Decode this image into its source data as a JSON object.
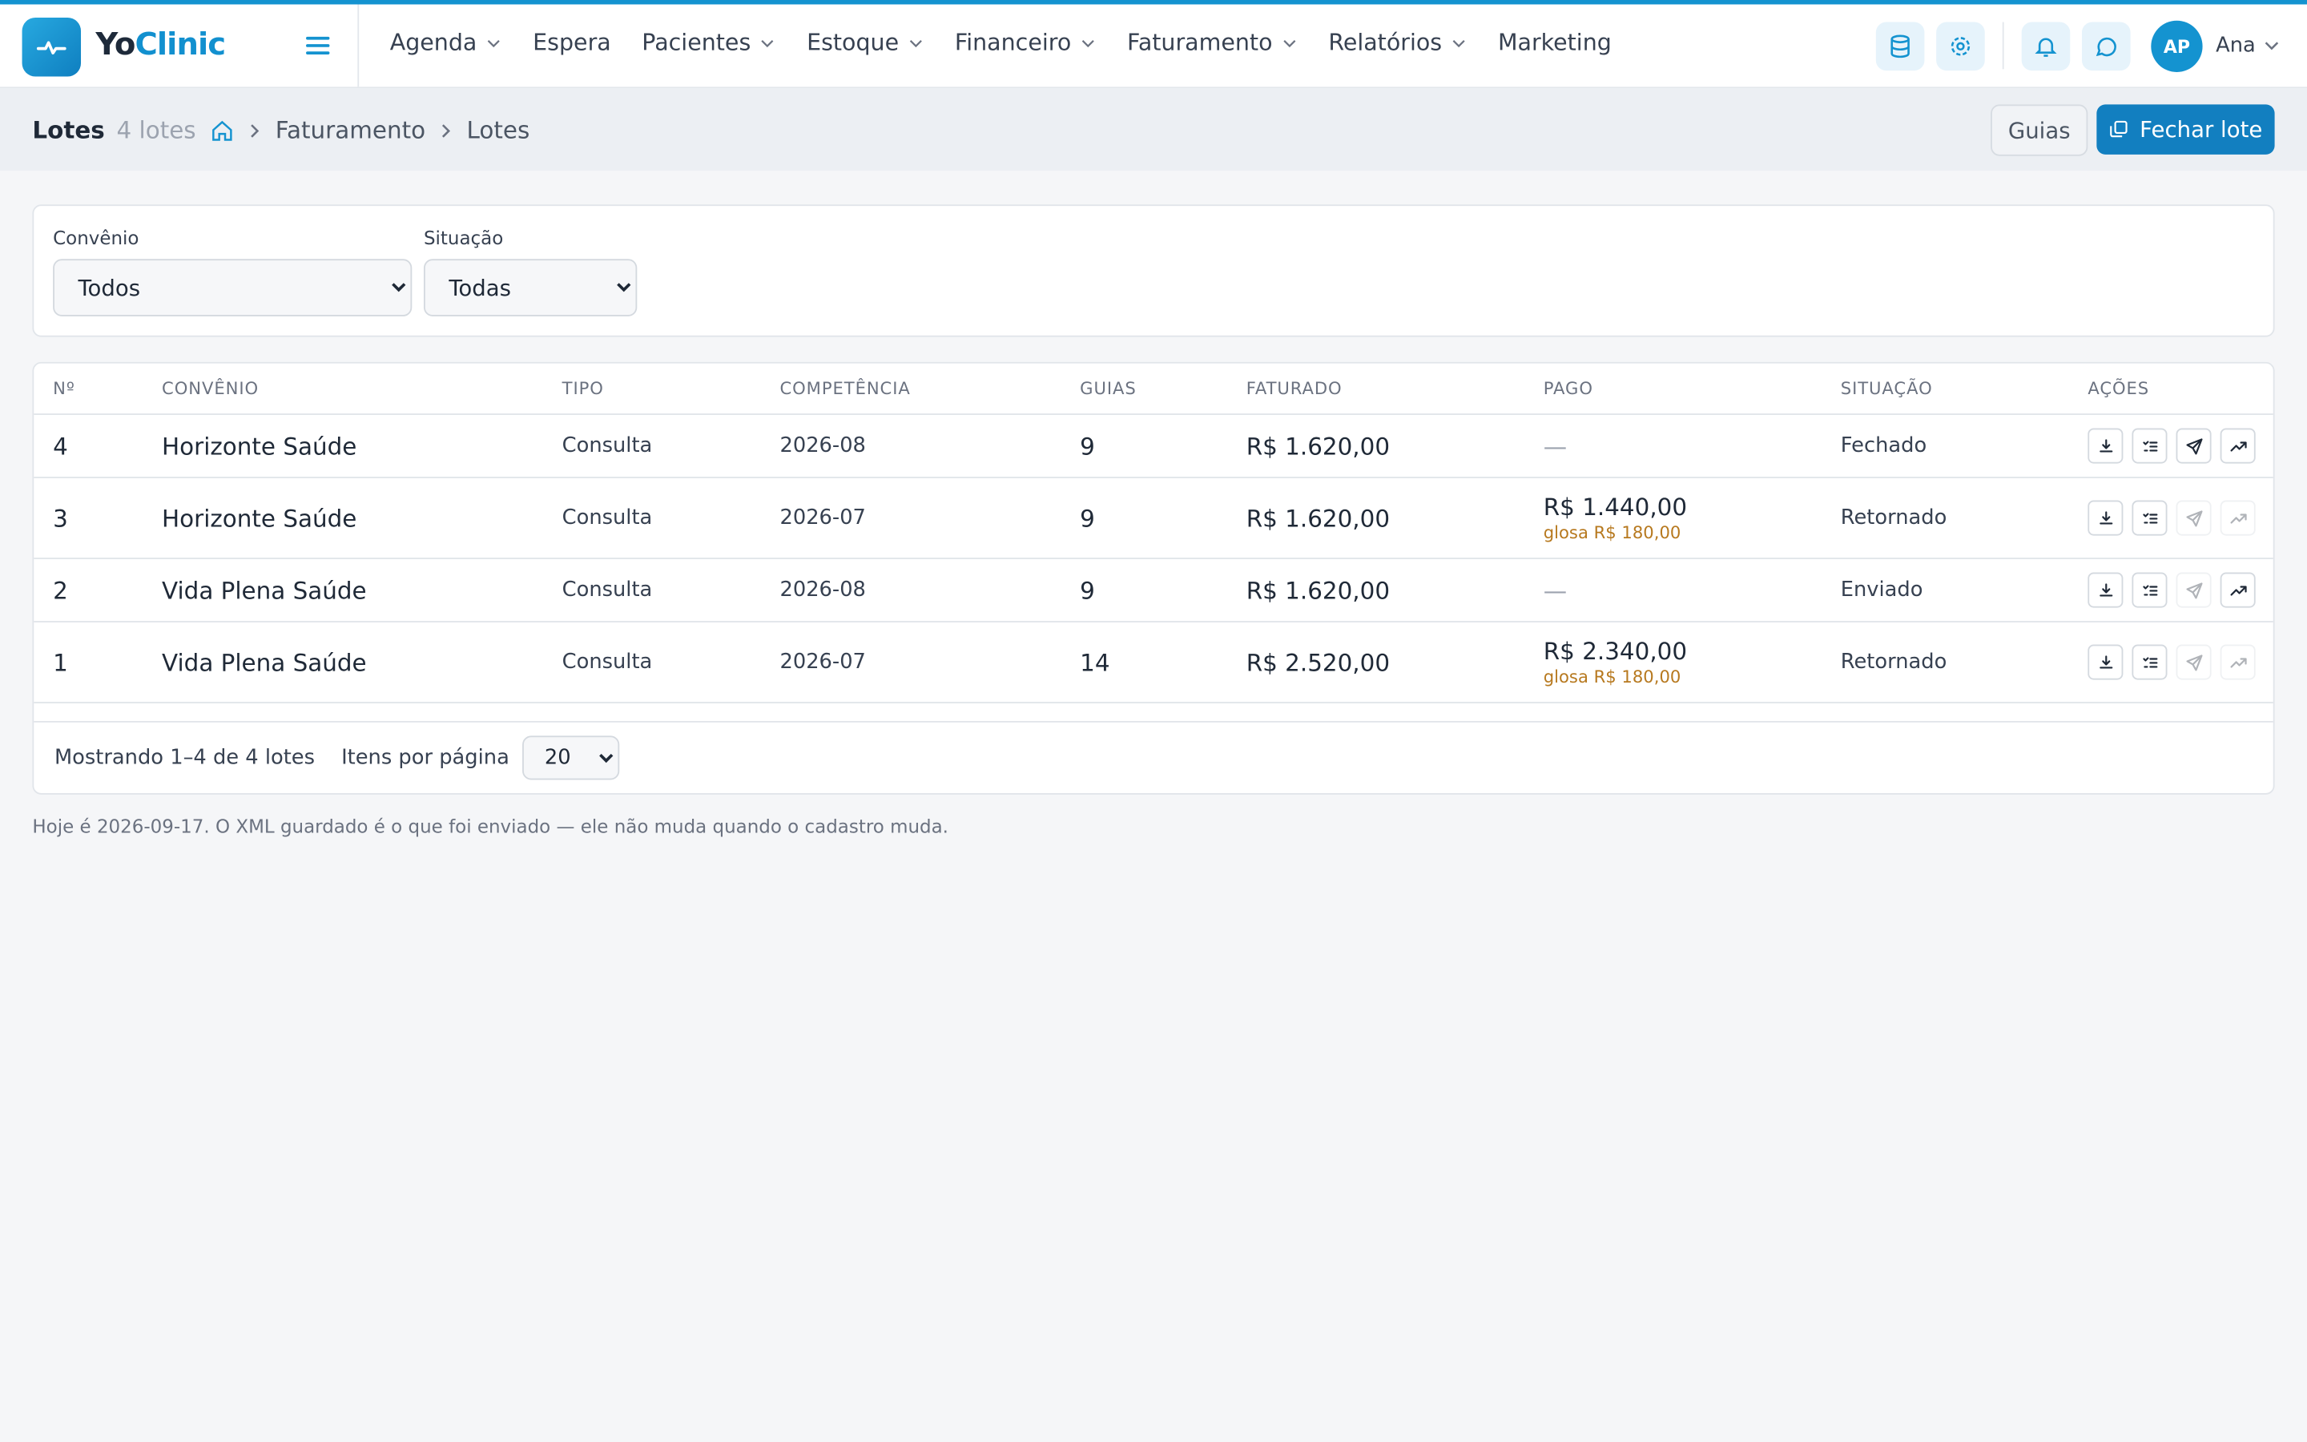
{
  "header": {
    "logo": [
      "Yo",
      "Clinic"
    ],
    "nav": [
      "Agenda",
      "Espera",
      "Pacientes",
      "Estoque",
      "Financeiro",
      "Faturamento",
      "Relatórios",
      "Marketing"
    ],
    "avatar": "AP",
    "user": "Ana"
  },
  "page": {
    "title": "Lotes",
    "count": "4 lotes",
    "breadcrumb": [
      "Faturamento",
      "Lotes"
    ],
    "buttons": {
      "guias": "Guias",
      "fechar": "Fechar lote"
    }
  },
  "filters": [
    {
      "label": "Convênio",
      "value": "Todos"
    },
    {
      "label": "Situação",
      "value": "Todas"
    }
  ],
  "table": {
    "columns": [
      "Nº",
      "CONVÊNIO",
      "TIPO",
      "COMPETÊNCIA",
      "GUIAS",
      "FATURADO",
      "PAGO",
      "SITUAÇÃO",
      "AÇÕES"
    ],
    "rows": [
      {
        "num": 4,
        "convenio": "Horizonte Saúde",
        "tipo": "Consulta",
        "competencia": "2026-08",
        "guias": 9,
        "faturado": "R$ 1.620,00",
        "pago": "—",
        "situacao": "Fechado"
      },
      {
        "num": 3,
        "convenio": "Horizonte Saúde",
        "tipo": "Consulta",
        "competencia": "2026-07",
        "guias": 9,
        "faturado": "R$ 1.620,00",
        "pago": "R$ 1.440,00",
        "glosa": "glosa R$ 180,00",
        "situacao": "Retornado"
      },
      {
        "num": 2,
        "convenio": "Vida Plena Saúde",
        "tipo": "Consulta",
        "competencia": "2026-08",
        "guias": 9,
        "faturado": "R$ 1.620,00",
        "pago": "—",
        "situacao": "Enviado"
      },
      {
        "num": 1,
        "convenio": "Vida Plena Saúde",
        "tipo": "Consulta",
        "competencia": "2026-07",
        "guias": 14,
        "faturado": "R$ 2.520,00",
        "pago": "R$ 2.340,00",
        "glosa": "glosa R$ 180,00",
        "situacao": "Retornado"
      }
    ]
  },
  "pagination": {
    "showing": "Mostrando 1–4 de 4 lotes",
    "per_page_label": "Itens por página",
    "per_page": "20"
  },
  "note": "Hoje é 2026-09-17. O XML guardado é o que foi enviado — ele não muda quando o cadastro muda."
}
